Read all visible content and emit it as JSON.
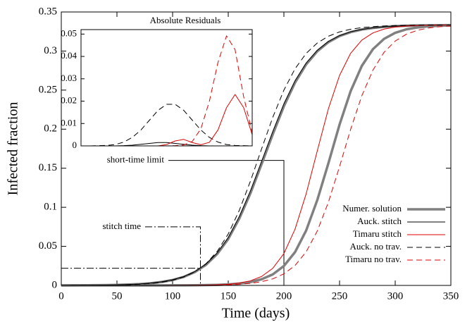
{
  "chart_data": [
    {
      "type": "line",
      "xlabel": "Time (days)",
      "ylabel": "Infected fraction",
      "xlim": [
        0,
        350
      ],
      "xticks": [
        0,
        50,
        100,
        150,
        200,
        250,
        300,
        350
      ],
      "ylim": [
        0,
        0.35
      ],
      "yticks": [
        0,
        0.05,
        0.1,
        0.15,
        0.2,
        0.25,
        0.3,
        0.35
      ],
      "legend": "lower right",
      "x": [
        0,
        10,
        20,
        30,
        40,
        50,
        60,
        70,
        80,
        90,
        100,
        110,
        120,
        130,
        140,
        150,
        160,
        170,
        180,
        190,
        200,
        210,
        220,
        230,
        240,
        250,
        260,
        270,
        280,
        290,
        300,
        310,
        320,
        330,
        340,
        350
      ],
      "series": [
        {
          "name": "Numer. solution",
          "color": "#808080",
          "width": 3.5,
          "dash": false,
          "values": [
            0,
            0,
            0,
            0,
            0,
            0,
            0,
            0,
            0,
            0,
            0.0001,
            0.0001,
            0.0002,
            0.0004,
            0.0007,
            0.0013,
            0.0024,
            0.0044,
            0.0079,
            0.0141,
            0.0249,
            0.0426,
            0.0703,
            0.1093,
            0.1565,
            0.2059,
            0.2488,
            0.281,
            0.3024,
            0.3156,
            0.3233,
            0.3278,
            0.3302,
            0.3316,
            0.3324,
            0.3328
          ]
        },
        {
          "color": "#808080",
          "width": 3.5,
          "dash": false,
          "values": [
            0,
            0.0001,
            0.0002,
            0.0003,
            0.0005,
            0.0007,
            0.0011,
            0.0017,
            0.0027,
            0.0044,
            0.0069,
            0.0109,
            0.0171,
            0.0264,
            0.0401,
            0.0595,
            0.0859,
            0.1183,
            0.1555,
            0.1935,
            0.2294,
            0.2596,
            0.2829,
            0.2997,
            0.3114,
            0.3192,
            0.3242,
            0.3275,
            0.3296,
            0.3309,
            0.3318,
            0.3324,
            0.3327,
            0.333,
            0.3331,
            0.3332
          ]
        },
        {
          "name": "Auck. stitch",
          "color": "#000000",
          "width": 1,
          "dash": false,
          "values": [
            0,
            0.0001,
            0.0002,
            0.0003,
            0.0005,
            0.0007,
            0.0011,
            0.0018,
            0.0029,
            0.0046,
            0.0072,
            0.0113,
            0.0177,
            0.0273,
            0.0415,
            0.0613,
            0.0884,
            0.1213,
            0.159,
            0.197,
            0.2326,
            0.262,
            0.2847,
            0.301,
            0.3123,
            0.3198,
            0.3247,
            0.3278,
            0.3298,
            0.3311,
            0.3319,
            0.3325,
            0.3328,
            0.333,
            0.3332,
            0.3333
          ]
        },
        {
          "name": "Timaru stitch",
          "color": "#e00000",
          "width": 1,
          "dash": false,
          "values": [
            0,
            0,
            0,
            0,
            0,
            0,
            0,
            0,
            0,
            0,
            0.0001,
            0.0001,
            0.0002,
            0.0004,
            0.0008,
            0.0015,
            0.003,
            0.0059,
            0.0115,
            0.0219,
            0.0408,
            0.072,
            0.1173,
            0.1723,
            0.2263,
            0.2688,
            0.2972,
            0.314,
            0.3232,
            0.3281,
            0.3307,
            0.332,
            0.3326,
            0.333,
            0.3332,
            0.3333
          ]
        },
        {
          "name": "Auck. no trav.",
          "color": "#000000",
          "width": 1,
          "dash": true,
          "values": [
            0,
            0.0001,
            0.0001,
            0.0002,
            0.0003,
            0.0006,
            0.0009,
            0.0015,
            0.0025,
            0.004,
            0.0066,
            0.0108,
            0.0174,
            0.0278,
            0.0434,
            0.0659,
            0.0963,
            0.1338,
            0.175,
            0.2152,
            0.25,
            0.2773,
            0.297,
            0.3103,
            0.319,
            0.3245,
            0.3279,
            0.33,
            0.3313,
            0.3321,
            0.3326,
            0.3329,
            0.3331,
            0.3332,
            0.3332,
            0.3333
          ]
        },
        {
          "name": "Timaru no trav.",
          "color": "#e00000",
          "width": 1,
          "dash": true,
          "values": [
            0,
            0,
            0,
            0,
            0,
            0,
            0,
            0,
            0,
            0,
            0,
            0.0001,
            0.0001,
            0.0003,
            0.0005,
            0.0008,
            0.0015,
            0.0027,
            0.0048,
            0.0084,
            0.0148,
            0.0255,
            0.043,
            0.0697,
            0.1066,
            0.1522,
            0.2,
            0.2428,
            0.2757,
            0.2984,
            0.3128,
            0.3215,
            0.3266,
            0.3295,
            0.3312,
            0.3321
          ]
        }
      ],
      "annotations": [
        {
          "text": "short-time limit",
          "x": 200,
          "y": 0.16
        },
        {
          "text": "stitch time",
          "x": 125,
          "y": 0.075,
          "level": 0.022
        }
      ]
    },
    {
      "type": "line",
      "title": "Absolute Residuals",
      "xlim": [
        100,
        300
      ],
      "ylim": [
        0,
        0.052
      ],
      "yticks": [
        0,
        0.01,
        0.02,
        0.03,
        0.04,
        0.05
      ],
      "x": [
        100,
        110,
        120,
        130,
        140,
        150,
        160,
        170,
        180,
        190,
        200,
        210,
        220,
        230,
        240,
        250,
        260,
        270,
        280,
        290,
        300
      ],
      "series": [
        {
          "color": "#000000",
          "width": 1,
          "dash": false,
          "values": [
            0,
            0,
            0,
            0,
            0,
            0.0001,
            0.0003,
            0.0007,
            0.0011,
            0.0015,
            0.0015,
            0.0011,
            0.0007,
            0.0003,
            0.0001,
            0,
            0,
            0,
            0,
            0,
            0
          ]
        },
        {
          "color": "#000000",
          "width": 1,
          "dash": true,
          "values": [
            0,
            0,
            0.0001,
            0.0002,
            0.0006,
            0.0017,
            0.0038,
            0.0071,
            0.0115,
            0.0159,
            0.0186,
            0.0186,
            0.0159,
            0.0115,
            0.0071,
            0.0038,
            0.0017,
            0.0006,
            0.0002,
            0.0001,
            0
          ]
        },
        {
          "color": "#e00000",
          "width": 1,
          "dash": false,
          "values": [
            0,
            0,
            0,
            0,
            0,
            0,
            0,
            0,
            0,
            0,
            0.0006,
            0.0022,
            0.0029,
            0.0015,
            0.0005,
            0.0016,
            0.0071,
            0.0171,
            0.023,
            0.0171,
            0.005
          ]
        },
        {
          "color": "#e00000",
          "width": 1,
          "dash": true,
          "values": [
            0,
            0,
            0,
            0,
            0,
            0,
            0,
            0,
            0,
            0,
            0,
            0.0001,
            0.0004,
            0.002,
            0.0076,
            0.02,
            0.0373,
            0.0492,
            0.043,
            0.022,
            0.006
          ]
        }
      ]
    }
  ]
}
